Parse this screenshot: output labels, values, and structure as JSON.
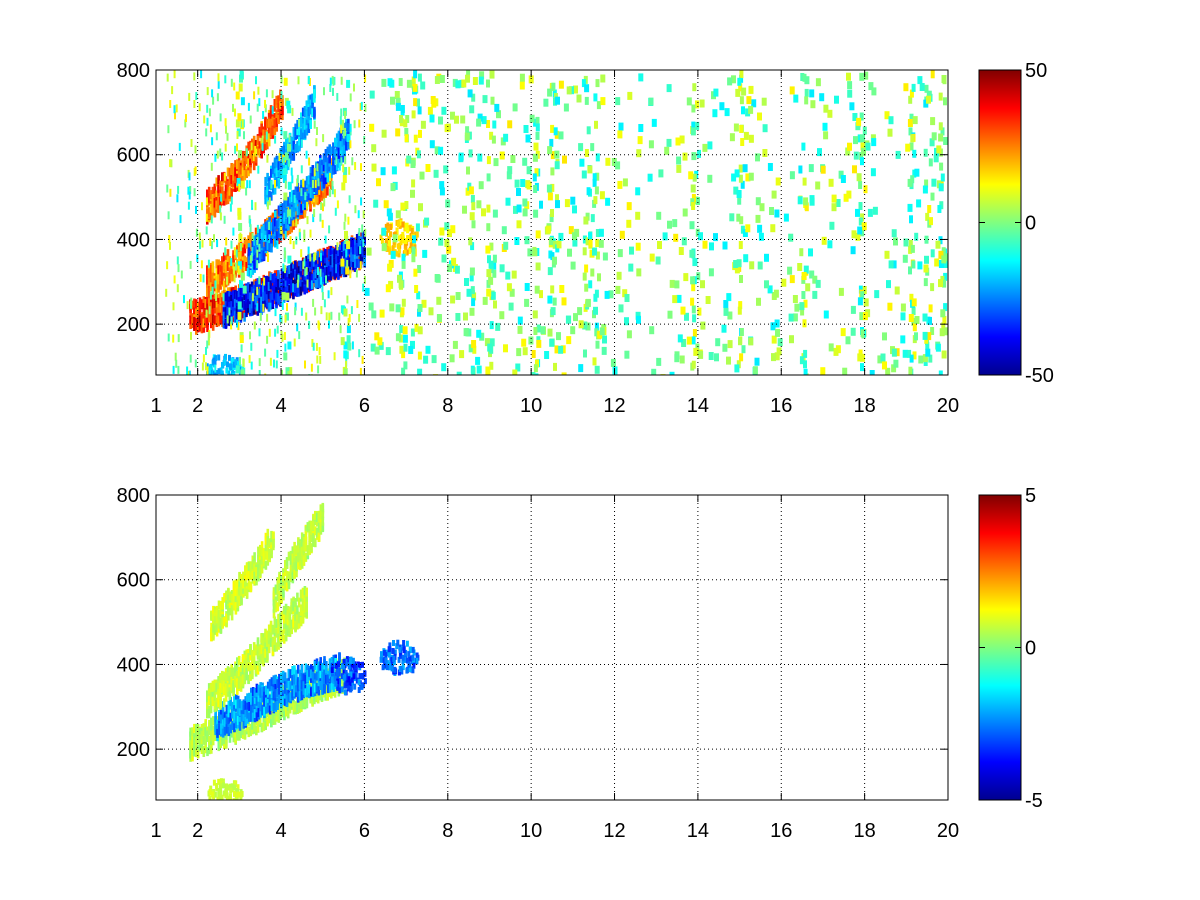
{
  "chart_data": [
    {
      "type": "heatmap",
      "title": "",
      "xlabel": "",
      "ylabel": "",
      "xlim": [
        1,
        20
      ],
      "ylim": [
        80,
        800
      ],
      "x_ticks": [
        "1",
        "2",
        "4",
        "6",
        "8",
        "10",
        "12",
        "14",
        "16",
        "18",
        "20"
      ],
      "x_tick_values": [
        1,
        2,
        4,
        6,
        8,
        10,
        12,
        14,
        16,
        18,
        20
      ],
      "y_ticks": [
        "200",
        "400",
        "600",
        "800"
      ],
      "y_tick_values": [
        200,
        400,
        600,
        800
      ],
      "grid": true,
      "colormap": "jet",
      "colorbar": {
        "min": -50,
        "max": 50,
        "ticks": [
          "50",
          "0",
          "-50"
        ],
        "tick_values": [
          50,
          0,
          -50
        ]
      },
      "features": [
        {
          "shape": "band",
          "x": [
            1.8,
            2.5,
            3.2,
            3.9,
            4.6,
            5.3,
            5.9
          ],
          "y": [
            225,
            245,
            270,
            300,
            330,
            360,
            385
          ],
          "value": 38
        },
        {
          "shape": "band",
          "x": [
            2.6,
            3.2,
            3.8,
            4.4,
            5.0,
            5.6,
            6.0
          ],
          "y": [
            240,
            265,
            290,
            320,
            345,
            370,
            390
          ],
          "value": -42
        },
        {
          "shape": "band",
          "x": [
            2.2,
            2.8,
            3.4,
            4.0,
            4.6,
            5.2
          ],
          "y": [
            310,
            350,
            395,
            450,
            510,
            570
          ],
          "value": 30
        },
        {
          "shape": "band",
          "x": [
            3.2,
            3.7,
            4.2,
            4.7,
            5.2,
            5.6
          ],
          "y": [
            360,
            420,
            480,
            540,
            600,
            660
          ],
          "value": -30
        },
        {
          "shape": "band",
          "x": [
            2.2,
            2.7,
            3.2,
            3.6,
            4.0
          ],
          "y": [
            490,
            540,
            600,
            660,
            730
          ],
          "value": 34
        },
        {
          "shape": "band",
          "x": [
            3.6,
            4.0,
            4.4,
            4.8
          ],
          "y": [
            520,
            590,
            660,
            740
          ],
          "value": -25
        },
        {
          "shape": "blob",
          "x": 6.8,
          "y": 410,
          "value": 20
        },
        {
          "shape": "blob",
          "x": 2.6,
          "y": 95,
          "value": -22
        }
      ],
      "noise_columns": [
        3.0,
        4.1,
        5.5,
        6.9,
        7.2,
        8.5,
        9.0,
        10.1,
        10.5,
        11.3,
        11.5,
        13.9,
        15.0,
        16.5,
        17.9,
        19.1,
        19.5,
        19.8
      ],
      "noise_range": [
        -15,
        15
      ],
      "noise_x_range": [
        6,
        20
      ]
    },
    {
      "type": "heatmap",
      "title": "",
      "xlabel": "",
      "ylabel": "",
      "xlim": [
        1,
        20
      ],
      "ylim": [
        80,
        800
      ],
      "x_ticks": [
        "1",
        "2",
        "4",
        "6",
        "8",
        "10",
        "12",
        "14",
        "16",
        "18",
        "20"
      ],
      "x_tick_values": [
        1,
        2,
        4,
        6,
        8,
        10,
        12,
        14,
        16,
        18,
        20
      ],
      "y_ticks": [
        "200",
        "400",
        "600",
        "800"
      ],
      "y_tick_values": [
        200,
        400,
        600,
        800
      ],
      "grid": true,
      "colormap": "jet",
      "colorbar": {
        "min": -5,
        "max": 5,
        "ticks": [
          "5",
          "0",
          "-5"
        ],
        "tick_values": [
          5,
          0,
          -5
        ]
      },
      "features": [
        {
          "shape": "band",
          "x": [
            1.8,
            2.4,
            3.0,
            3.6,
            4.2,
            4.8,
            5.5
          ],
          "y": [
            225,
            245,
            270,
            300,
            330,
            360,
            385
          ],
          "value": 0.6
        },
        {
          "shape": "band",
          "x": [
            2.4,
            3.0,
            3.6,
            4.2,
            4.8,
            5.4
          ],
          "y": [
            270,
            300,
            330,
            360,
            380,
            395
          ],
          "value": -2.8
        },
        {
          "shape": "band",
          "x": [
            2.2,
            2.8,
            3.4,
            4.0,
            4.6
          ],
          "y": [
            320,
            370,
            430,
            500,
            560
          ],
          "value": 0.8
        },
        {
          "shape": "band",
          "x": [
            2.3,
            2.8,
            3.3,
            3.8
          ],
          "y": [
            500,
            560,
            630,
            710
          ],
          "value": 0.9
        },
        {
          "shape": "band",
          "x": [
            3.8,
            4.2,
            4.6,
            5.0
          ],
          "y": [
            560,
            640,
            700,
            760
          ],
          "value": 0.7
        },
        {
          "shape": "blob",
          "x": 6.8,
          "y": 420,
          "value": -3.2
        },
        {
          "shape": "blob",
          "x": 5.6,
          "y": 380,
          "value": -3.5
        },
        {
          "shape": "blob",
          "x": 2.6,
          "y": 95,
          "value": 0.9
        }
      ],
      "noise_columns": [],
      "noise_range": [
        -1,
        1
      ],
      "noise_x_range": [
        6,
        8
      ]
    }
  ]
}
